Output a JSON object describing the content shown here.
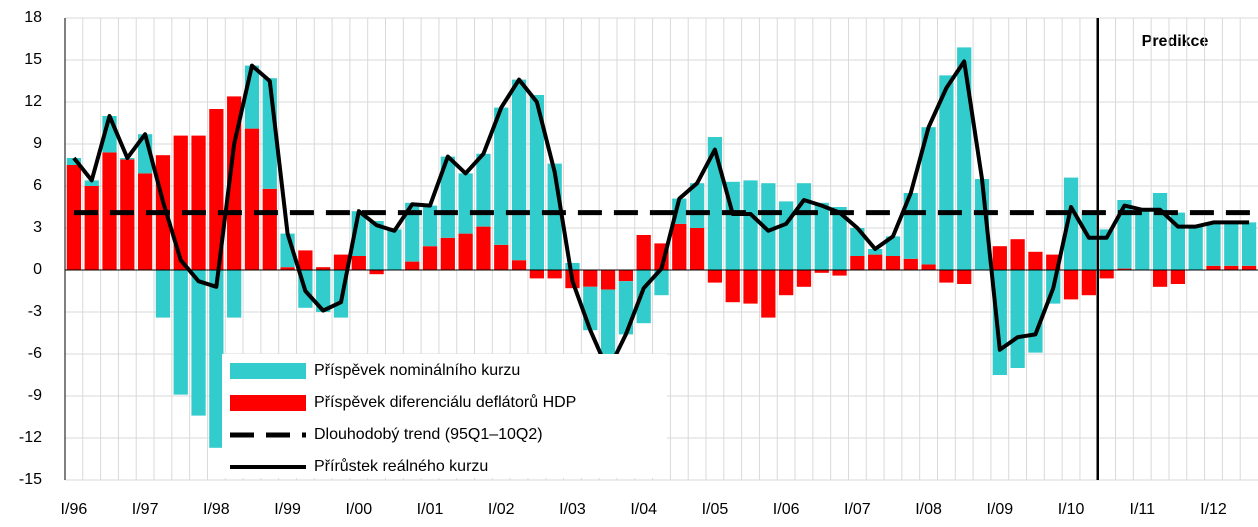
{
  "chart_data": {
    "type": "bar",
    "annotation": "Predikce",
    "categories": [
      "I/96",
      null,
      null,
      null,
      "I/97",
      null,
      null,
      null,
      "I/98",
      null,
      null,
      null,
      "I/99",
      null,
      null,
      null,
      "I/00",
      null,
      null,
      null,
      "I/01",
      null,
      null,
      null,
      "I/02",
      null,
      null,
      null,
      "I/03",
      null,
      null,
      null,
      "I/04",
      null,
      null,
      null,
      "I/05",
      null,
      null,
      null,
      "I/06",
      null,
      null,
      null,
      "I/07",
      null,
      null,
      null,
      "I/08",
      null,
      null,
      null,
      "I/09",
      null,
      null,
      null,
      "I/10",
      null,
      null,
      null,
      "I/11",
      null,
      null,
      null,
      "I/12",
      null,
      null
    ],
    "series": [
      {
        "name": "Příspěvek nominálního kurzu",
        "type": "bar",
        "color": "#33cccc",
        "values": [
          0.5,
          0.4,
          2.6,
          0.1,
          2.8,
          -3.4,
          -8.9,
          -10.4,
          -12.7,
          -3.4,
          4.5,
          7.9,
          2.4,
          -2.7,
          -3.0,
          -3.4,
          3.2,
          3.5,
          2.9,
          4.2,
          2.9,
          5.8,
          4.3,
          5.2,
          9.8,
          12.9,
          12.5,
          7.6,
          0.5,
          -3.1,
          -5.9,
          -3.8,
          -3.8,
          -1.8,
          1.8,
          3.2,
          9.5,
          6.3,
          6.4,
          6.2,
          4.9,
          6.2,
          4.8,
          4.5,
          2.0,
          0.4,
          1.4,
          4.7,
          9.8,
          13.9,
          15.9,
          6.5,
          -7.5,
          -7.0,
          -5.9,
          -2.4,
          6.6,
          4.1,
          2.9,
          4.9,
          4.3,
          5.5,
          4.1,
          3.1,
          3.1,
          3.1,
          3.1
        ]
      },
      {
        "name": "Příspěvek diferenciálu deflátorů HDP",
        "type": "bar",
        "color": "#ff0000",
        "values": [
          7.5,
          6.0,
          8.4,
          7.9,
          6.9,
          8.2,
          9.6,
          9.6,
          11.5,
          12.4,
          10.1,
          5.8,
          0.2,
          1.4,
          0.2,
          1.1,
          1.0,
          -0.3,
          0,
          0.6,
          1.7,
          2.3,
          2.6,
          3.1,
          1.8,
          0.7,
          -0.6,
          -0.6,
          -1.3,
          -1.2,
          -1.4,
          -0.8,
          2.5,
          1.9,
          3.3,
          3.0,
          -0.9,
          -2.3,
          -2.4,
          -3.4,
          -1.8,
          -1.2,
          -0.2,
          -0.4,
          1.0,
          1.1,
          1.0,
          0.8,
          0.4,
          -0.9,
          -1.0,
          0,
          1.7,
          2.2,
          1.3,
          1.1,
          -2.1,
          -1.8,
          -0.6,
          0.1,
          0,
          -1.2,
          -1.0,
          0,
          0.3,
          0.3,
          0.3
        ]
      },
      {
        "name": "Dlouhodobý trend (95Q1–10Q2)",
        "type": "hline",
        "color": "#000000",
        "value": 4.1
      },
      {
        "name": "Přírůstek reálného kurzu",
        "type": "line",
        "color": "#000000",
        "values": [
          8.0,
          6.4,
          11.0,
          8.0,
          9.7,
          4.9,
          0.7,
          -0.8,
          -1.2,
          9.0,
          14.6,
          13.5,
          2.6,
          -1.5,
          -2.9,
          -2.3,
          4.2,
          3.2,
          2.8,
          4.7,
          4.6,
          8.1,
          6.9,
          8.3,
          11.6,
          13.6,
          12.0,
          7.0,
          -0.8,
          -4.3,
          -7.2,
          -4.6,
          -1.3,
          0.1,
          5.1,
          6.2,
          8.6,
          4.0,
          4.0,
          2.8,
          3.3,
          5.0,
          4.6,
          4.1,
          3.0,
          1.5,
          2.4,
          5.5,
          10.2,
          13.0,
          14.9,
          6.5,
          -5.7,
          -4.8,
          -4.6,
          -1.3,
          4.5,
          2.3,
          2.3,
          4.6,
          4.3,
          4.3,
          3.1,
          3.1,
          3.4,
          3.4,
          3.4
        ]
      }
    ],
    "ylim": [
      -15,
      18
    ],
    "yticks": [
      -15,
      -12,
      -9,
      -6,
      -3,
      0,
      3,
      6,
      9,
      12,
      15,
      18
    ],
    "grid": true,
    "stacked": true
  }
}
